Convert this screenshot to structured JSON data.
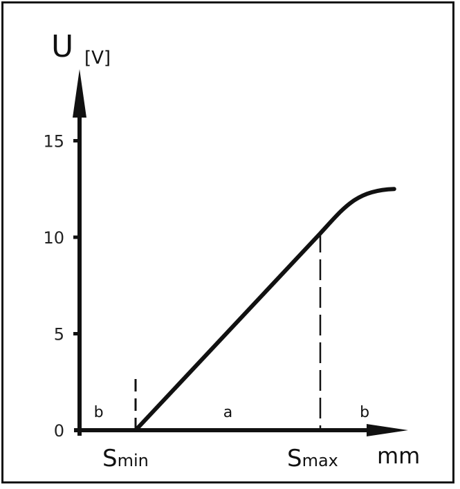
{
  "chart_data": {
    "type": "line",
    "y_axis": {
      "title": "U",
      "unit": "[V]",
      "ticks": [
        0,
        5,
        10,
        15
      ],
      "tick_labels": [
        "0",
        "5",
        "10",
        "15"
      ],
      "ylim": [
        0,
        17.5
      ]
    },
    "x_axis": {
      "unit": "mm",
      "markers": [
        {
          "name": "S",
          "sub": "min",
          "x": 0
        },
        {
          "name": "S",
          "sub": "max",
          "x": 1
        }
      ]
    },
    "series": [
      {
        "points": [
          {
            "x": 0,
            "y": 0
          },
          {
            "x": 1,
            "y": 10.2
          },
          {
            "x": 1.1,
            "y": 11.4
          },
          {
            "x": 1.2,
            "y": 12.1
          },
          {
            "x": 1.3,
            "y": 12.4
          },
          {
            "x": 1.4,
            "y": 12.5
          }
        ]
      }
    ],
    "regions": [
      {
        "label": "b",
        "x": -0.2
      },
      {
        "label": "a",
        "x": 0.5
      },
      {
        "label": "b",
        "x": 1.24
      }
    ],
    "grid": false,
    "legend": "none"
  }
}
